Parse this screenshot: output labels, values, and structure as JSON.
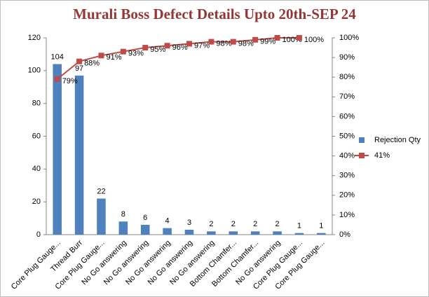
{
  "chart_data": {
    "type": "pareto",
    "title": "Murali Boss Defect Details Upto 20th-SEP 24",
    "categories": [
      "Core Plug Gauge...",
      "Thread Burr",
      "Core Plug Gauge...",
      "No Go answering",
      "No Go answering",
      "No Go answering",
      "No Go answering",
      "No Go answering",
      "Bottom Chamfer...",
      "Bottom Chamfer...",
      "No Go answering",
      "Core Plug Gauge...",
      "Core Plug Gauge..."
    ],
    "series": [
      {
        "name": "Rejection Qty",
        "color": "#4f81bd",
        "kind": "bar",
        "values": [
          104,
          97,
          22,
          8,
          6,
          4,
          3,
          2,
          2,
          2,
          2,
          1,
          1
        ]
      },
      {
        "name": "41%",
        "color": "#be4b48",
        "kind": "line",
        "axis": "y2",
        "values": [
          79,
          88,
          91,
          93,
          95,
          96,
          97,
          98,
          98,
          99,
          100,
          100,
          null
        ],
        "value_labels": [
          "79%",
          "88%",
          "91%",
          "93%",
          "95%",
          "96%",
          "97%",
          "98%",
          "98%",
          "99%",
          "100%",
          "100%",
          null
        ]
      }
    ],
    "ylim": [
      0,
      120
    ],
    "yticks": [
      0,
      20,
      40,
      60,
      80,
      100,
      120
    ],
    "y2lim": [
      0,
      100
    ],
    "y2ticks": [
      {
        "value": 0,
        "label": "0%"
      },
      {
        "value": 10,
        "label": "10%"
      },
      {
        "value": 20,
        "label": "20%"
      },
      {
        "value": 30,
        "label": "30%"
      },
      {
        "value": 40,
        "label": "40%"
      },
      {
        "value": 50,
        "label": "50%"
      },
      {
        "value": 60,
        "label": "60%"
      },
      {
        "value": 70,
        "label": "70%"
      },
      {
        "value": 80,
        "label": "80%"
      },
      {
        "value": 90,
        "label": "90%"
      },
      {
        "value": 100,
        "label": "100%"
      }
    ],
    "legend": "right"
  }
}
